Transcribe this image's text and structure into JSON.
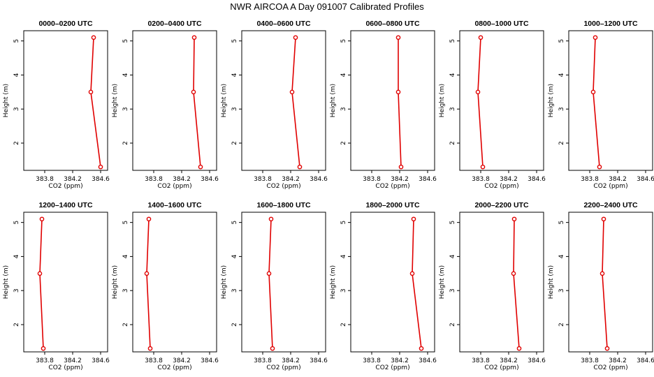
{
  "title": "NWR AIRCOA A  Day 091007  Calibrated Profiles",
  "chart_data": {
    "type": "line",
    "xlabel": "CO2 (ppm)",
    "ylabel": "Height (m)",
    "xlim": [
      383.5,
      384.7
    ],
    "ylim": [
      1.2,
      5.3
    ],
    "xticks": [
      "383.8",
      "384.2",
      "384.6"
    ],
    "yticks": [
      "2",
      "3",
      "4",
      "5"
    ],
    "heights": [
      5.1,
      3.5,
      1.3
    ],
    "panels": [
      {
        "title": "0000–0200 UTC",
        "values": [
          384.5,
          384.46,
          384.6
        ]
      },
      {
        "title": "0200–0400 UTC",
        "values": [
          384.38,
          384.37,
          384.47
        ]
      },
      {
        "title": "0400–0600 UTC",
        "values": [
          384.27,
          384.22,
          384.33
        ]
      },
      {
        "title": "0600–0800 UTC",
        "values": [
          384.18,
          384.18,
          384.22
        ]
      },
      {
        "title": "0800–1000 UTC",
        "values": [
          383.8,
          383.76,
          383.83
        ]
      },
      {
        "title": "1000–1200 UTC",
        "values": [
          383.88,
          383.85,
          383.94
        ]
      },
      {
        "title": "1200–1400 UTC",
        "values": [
          383.76,
          383.73,
          383.78
        ]
      },
      {
        "title": "1400–1600 UTC",
        "values": [
          383.73,
          383.7,
          383.75
        ]
      },
      {
        "title": "1600–1800 UTC",
        "values": [
          383.92,
          383.89,
          383.94
        ]
      },
      {
        "title": "1800–2000 UTC",
        "values": [
          384.4,
          384.38,
          384.51
        ]
      },
      {
        "title": "2000–2200 UTC",
        "values": [
          384.28,
          384.27,
          384.35
        ]
      },
      {
        "title": "2200–2400 UTC",
        "values": [
          384.0,
          383.98,
          384.05
        ]
      }
    ]
  }
}
